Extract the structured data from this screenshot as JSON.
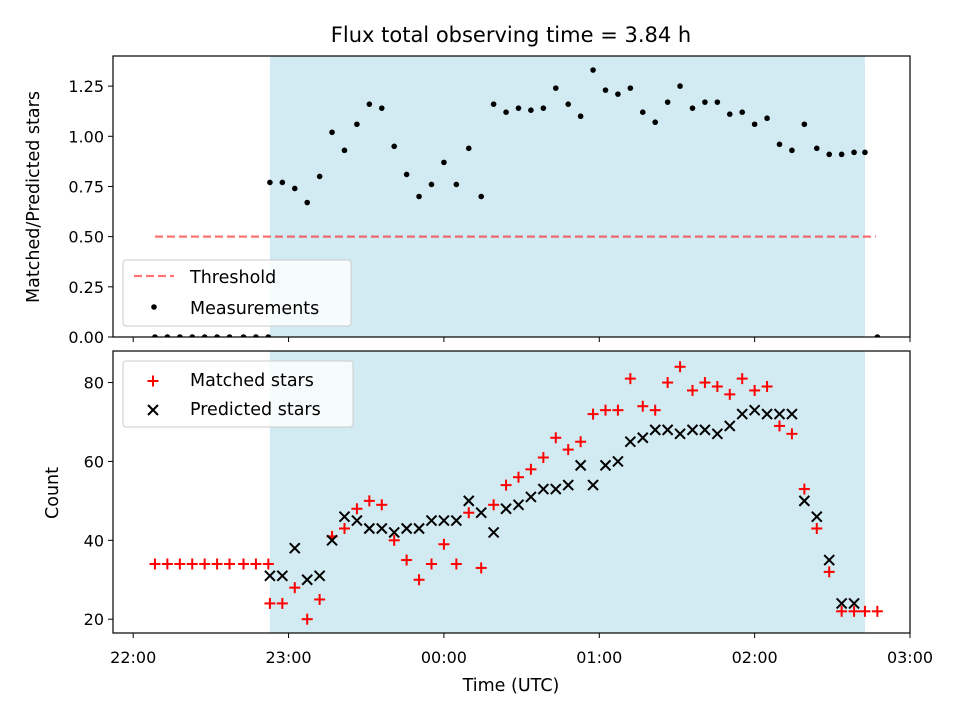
{
  "title": "Flux total observing time = 3.84 h",
  "colors": {
    "shade": "#add8e6",
    "threshold": "#ff0000",
    "matched": "#ff0000",
    "predicted": "#000000",
    "measurement": "#000000"
  },
  "chart_data": [
    {
      "type": "scatter",
      "ylabel": "Matched/Predicted stars",
      "xlabel": "",
      "x_units": "hours since 22:00 UTC",
      "xlim": [
        -0.13,
        5.0
      ],
      "ylim": [
        0,
        1.4
      ],
      "yticks": [
        0.0,
        0.25,
        0.5,
        0.75,
        1.0,
        1.25
      ],
      "ytick_labels": [
        "0.00",
        "0.25",
        "0.50",
        "0.75",
        "1.00",
        "1.25"
      ],
      "shaded_span": [
        0.88,
        4.71
      ],
      "legend": {
        "location": "lower-left",
        "entries": [
          "Threshold",
          "Measurements"
        ]
      },
      "threshold": {
        "name": "Threshold",
        "y": 0.5,
        "x_range": [
          0.14,
          4.78
        ],
        "style": "dashed"
      },
      "measurements": {
        "name": "Measurements",
        "x": [
          0.14,
          0.22,
          0.3,
          0.38,
          0.46,
          0.54,
          0.62,
          0.71,
          0.79,
          0.87,
          0.88,
          0.96,
          1.04,
          1.12,
          1.2,
          1.28,
          1.36,
          1.44,
          1.52,
          1.6,
          1.68,
          1.76,
          1.84,
          1.92,
          2.0,
          2.08,
          2.16,
          2.24,
          2.32,
          2.4,
          2.48,
          2.56,
          2.64,
          2.72,
          2.8,
          2.88,
          2.96,
          3.04,
          3.12,
          3.2,
          3.28,
          3.36,
          3.44,
          3.52,
          3.6,
          3.68,
          3.76,
          3.84,
          3.92,
          4.0,
          4.08,
          4.16,
          4.24,
          4.32,
          4.4,
          4.48,
          4.56,
          4.64,
          4.71,
          4.79
        ],
        "y": [
          0.0,
          0.0,
          0.0,
          0.0,
          0.0,
          0.0,
          0.0,
          0.0,
          0.0,
          0.0,
          0.77,
          0.77,
          0.74,
          0.67,
          0.8,
          1.02,
          0.93,
          1.06,
          1.16,
          1.14,
          0.95,
          0.81,
          0.7,
          0.76,
          0.87,
          0.76,
          0.94,
          0.7,
          1.16,
          1.12,
          1.14,
          1.13,
          1.14,
          1.24,
          1.16,
          1.1,
          1.33,
          1.23,
          1.21,
          1.24,
          1.12,
          1.07,
          1.17,
          1.25,
          1.14,
          1.17,
          1.17,
          1.11,
          1.12,
          1.06,
          1.09,
          0.96,
          0.93,
          1.06,
          0.94,
          0.91,
          0.91,
          0.92,
          0.92,
          0.0
        ]
      }
    },
    {
      "type": "scatter",
      "ylabel": "Count",
      "xlabel": "Time (UTC)",
      "x_units": "hours since 22:00 UTC",
      "xlim": [
        -0.13,
        5.0
      ],
      "ylim": [
        16.5,
        88
      ],
      "yticks": [
        20,
        40,
        60,
        80
      ],
      "ytick_labels": [
        "20",
        "40",
        "60",
        "80"
      ],
      "xticks": [
        0,
        1,
        2,
        3,
        4,
        5
      ],
      "xtick_labels": [
        "22:00",
        "23:00",
        "00:00",
        "01:00",
        "02:00",
        "03:00"
      ],
      "shaded_span": [
        0.88,
        4.71
      ],
      "legend": {
        "location": "top-left",
        "entries": [
          "Matched stars",
          "Predicted stars"
        ]
      },
      "series": [
        {
          "name": "Matched stars",
          "marker": "plus",
          "x": [
            0.14,
            0.22,
            0.3,
            0.38,
            0.46,
            0.54,
            0.62,
            0.71,
            0.79,
            0.87,
            0.88,
            0.96,
            1.04,
            1.12,
            1.2,
            1.28,
            1.36,
            1.44,
            1.52,
            1.6,
            1.68,
            1.76,
            1.84,
            1.92,
            2.0,
            2.08,
            2.16,
            2.24,
            2.32,
            2.4,
            2.48,
            2.56,
            2.64,
            2.72,
            2.8,
            2.88,
            2.96,
            3.04,
            3.12,
            3.2,
            3.28,
            3.36,
            3.44,
            3.52,
            3.6,
            3.68,
            3.76,
            3.84,
            3.92,
            4.0,
            4.08,
            4.16,
            4.24,
            4.32,
            4.4,
            4.48,
            4.56,
            4.64,
            4.71,
            4.79
          ],
          "y": [
            34,
            34,
            34,
            34,
            34,
            34,
            34,
            34,
            34,
            34,
            24,
            24,
            28,
            20,
            25,
            41,
            43,
            48,
            50,
            49,
            40,
            35,
            30,
            34,
            39,
            34,
            47,
            33,
            49,
            54,
            56,
            58,
            61,
            66,
            63,
            65,
            72,
            73,
            73,
            81,
            74,
            73,
            80,
            84,
            78,
            80,
            79,
            77,
            81,
            78,
            79,
            69,
            67,
            53,
            43,
            32,
            22,
            22,
            22,
            22
          ]
        },
        {
          "name": "Predicted stars",
          "marker": "x",
          "x": [
            0.88,
            0.96,
            1.04,
            1.12,
            1.2,
            1.28,
            1.36,
            1.44,
            1.52,
            1.6,
            1.68,
            1.76,
            1.84,
            1.92,
            2.0,
            2.08,
            2.16,
            2.24,
            2.32,
            2.4,
            2.48,
            2.56,
            2.64,
            2.72,
            2.8,
            2.88,
            2.96,
            3.04,
            3.12,
            3.2,
            3.28,
            3.36,
            3.44,
            3.52,
            3.6,
            3.68,
            3.76,
            3.84,
            3.92,
            4.0,
            4.08,
            4.16,
            4.24,
            4.32,
            4.4,
            4.48,
            4.56,
            4.64
          ],
          "y": [
            31,
            31,
            38,
            30,
            31,
            40,
            46,
            45,
            43,
            43,
            42,
            43,
            43,
            45,
            45,
            45,
            50,
            47,
            42,
            48,
            49,
            51,
            53,
            53,
            54,
            59,
            54,
            59,
            60,
            65,
            66,
            68,
            68,
            67,
            68,
            68,
            67,
            69,
            72,
            73,
            72,
            72,
            72,
            50,
            46,
            35,
            24,
            24
          ]
        }
      ]
    }
  ]
}
